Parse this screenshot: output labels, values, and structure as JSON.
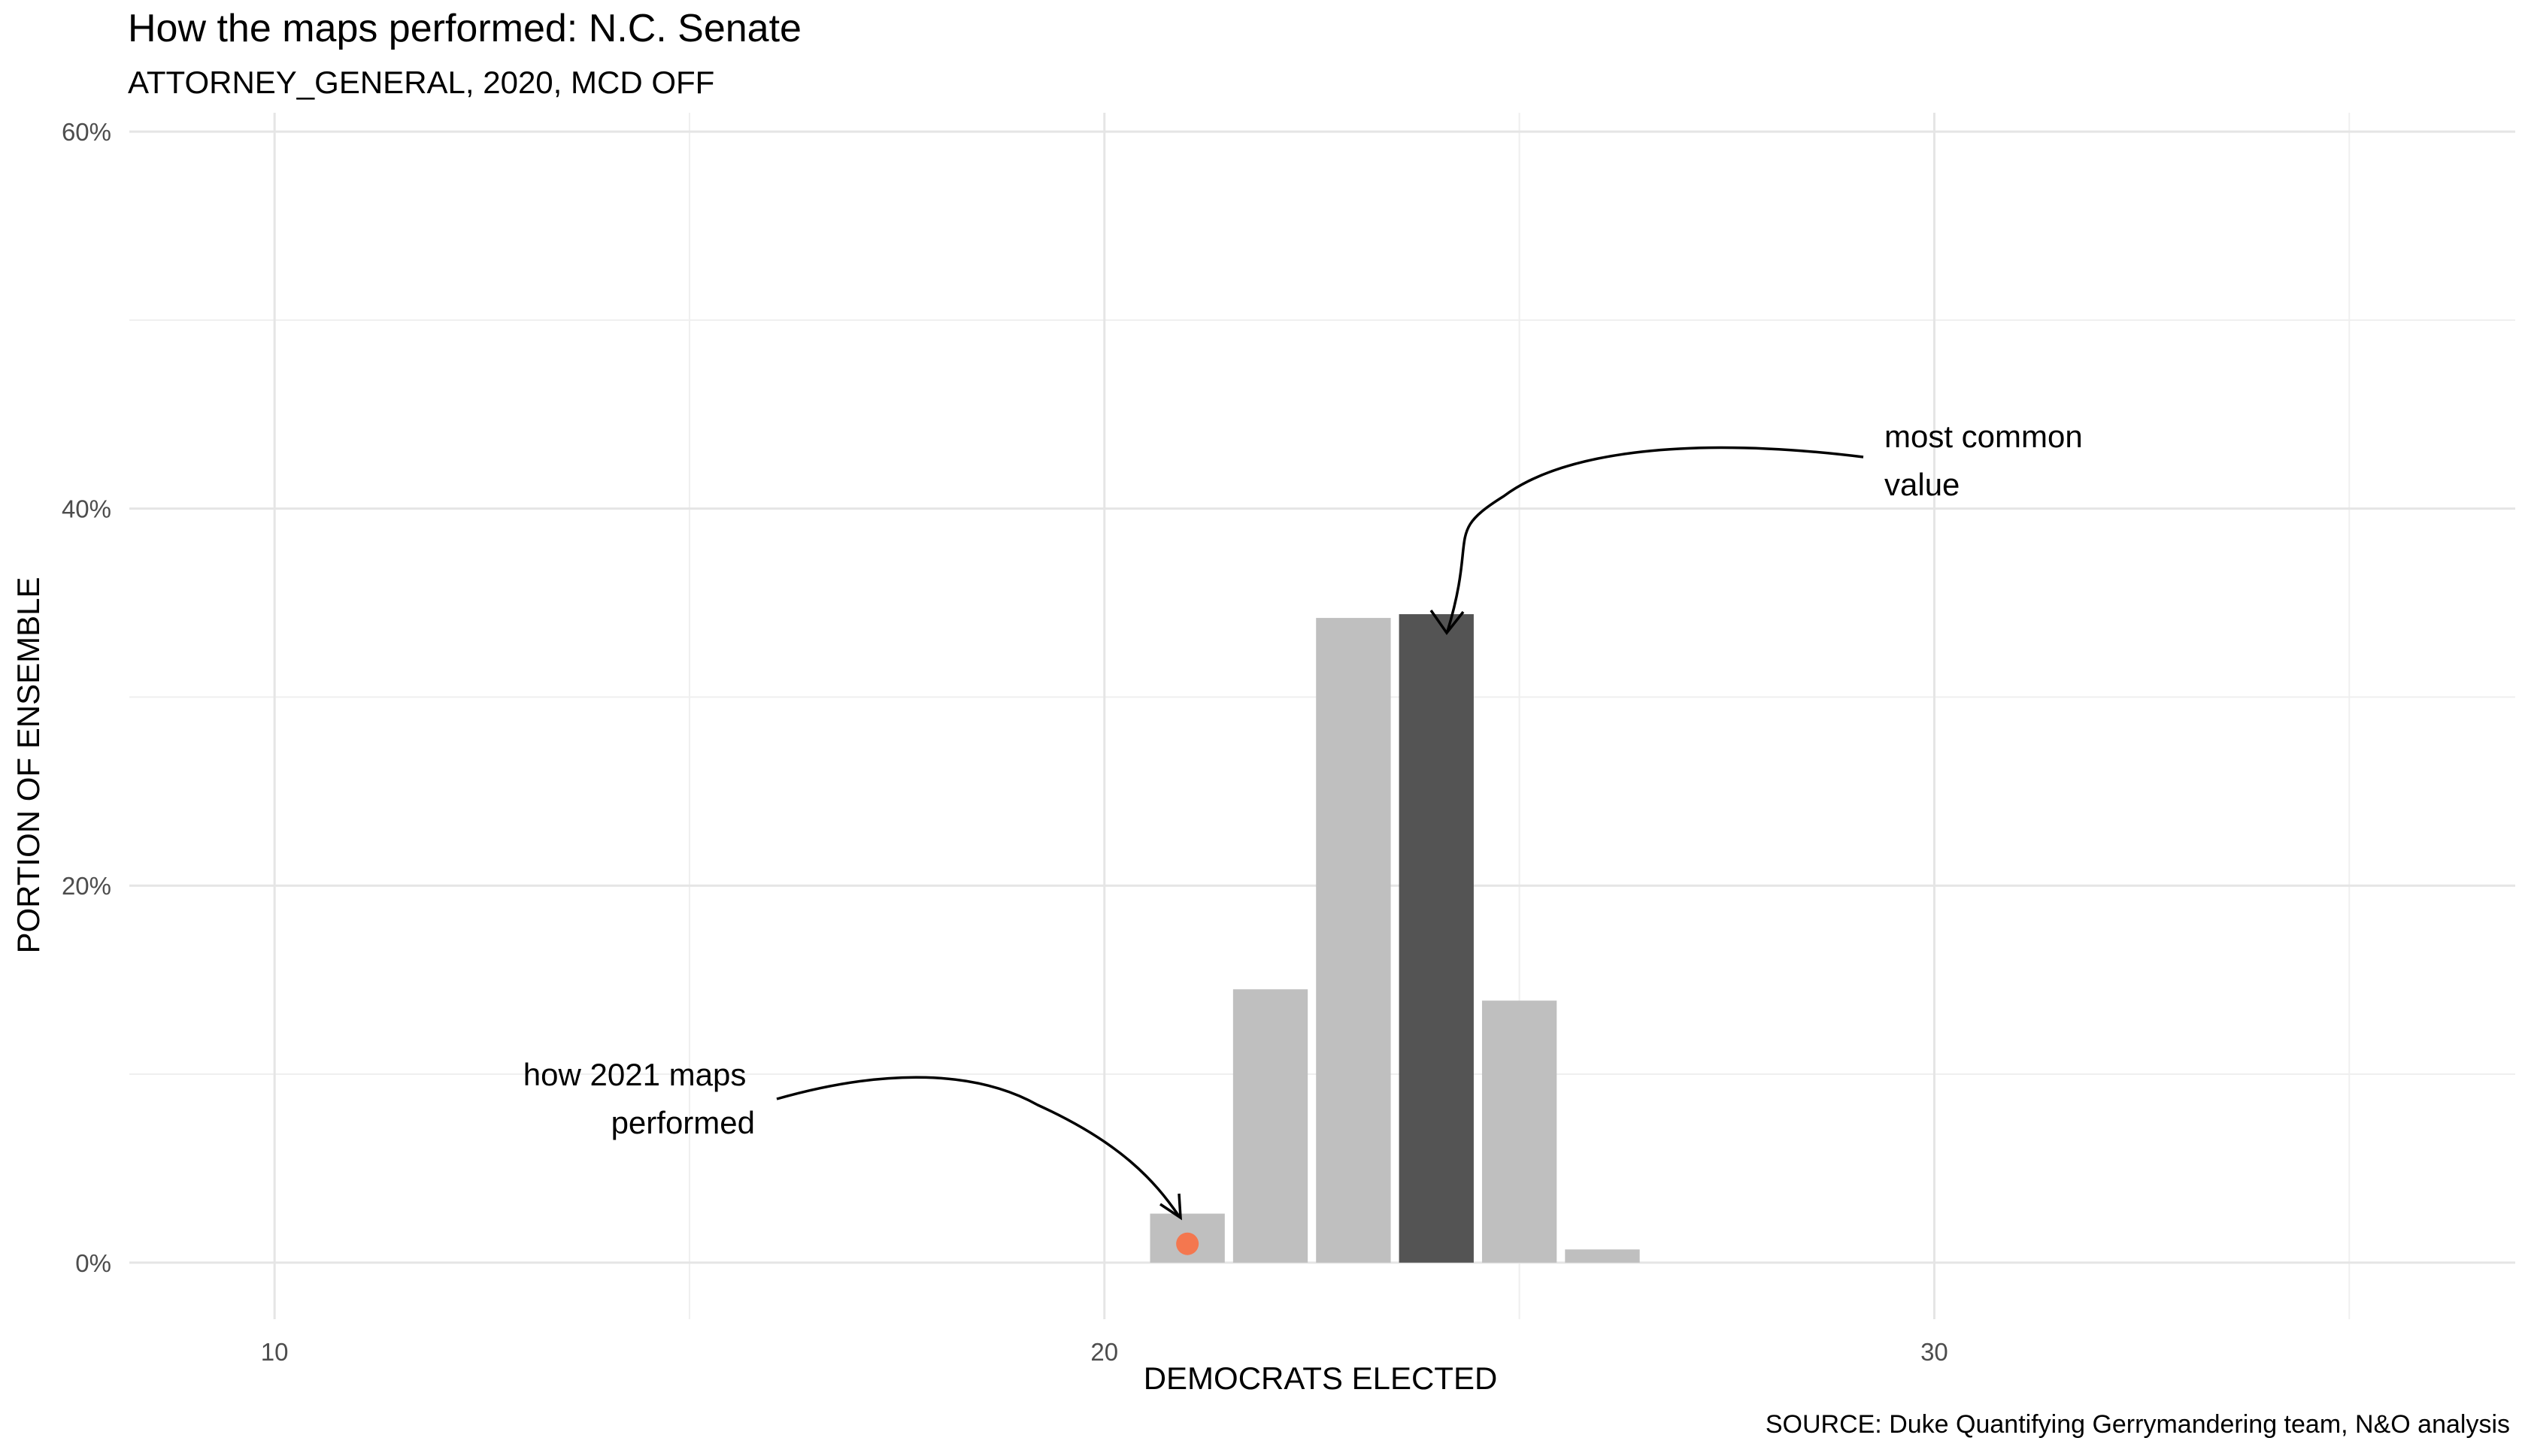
{
  "chart_data": {
    "type": "bar",
    "title": "How the maps performed: N.C. Senate",
    "subtitle": "ATTORNEY_GENERAL, 2020, MCD OFF",
    "xlabel": "DEMOCRATS ELECTED",
    "ylabel": "PORTION OF ENSEMBLE",
    "caption": "SOURCE: Duke Quantifying Gerrymandering team, N&O analysis",
    "x_ticks": [
      "10",
      "20",
      "30"
    ],
    "y_ticks": [
      "0%",
      "20%",
      "40%",
      "60%"
    ],
    "xlim": [
      8.25,
      37
    ],
    "ylim": [
      -3,
      61
    ],
    "grid": true,
    "x": [
      21,
      22,
      23,
      24,
      25,
      26
    ],
    "values": [
      2.6,
      14.5,
      34.2,
      34.4,
      13.9,
      0.7
    ],
    "highlight_index": 3,
    "colors": {
      "bar": "#bfbfbf",
      "highlight": "#545454",
      "marker": "#f4774f",
      "grid_major": "#e5e5e5",
      "grid_minor": "#efefef"
    },
    "marker": {
      "x": 21,
      "y": 1.0
    },
    "annotations": [
      {
        "id": "most-common",
        "lines": [
          "most common",
          "value"
        ]
      },
      {
        "id": "maps-2021",
        "lines": [
          "how 2021 maps",
          "performed"
        ]
      }
    ]
  }
}
